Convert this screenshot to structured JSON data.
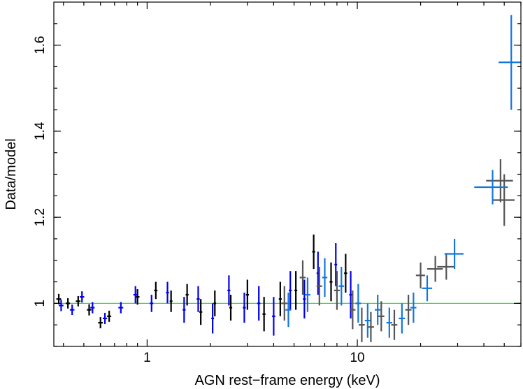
{
  "chart_data": {
    "type": "scatter",
    "title": "",
    "xlabel": "AGN rest−frame energy (keV)",
    "ylabel": "Data/model",
    "xscale": "log",
    "xlim": [
      0.36,
      60
    ],
    "ylim": [
      0.9,
      1.7
    ],
    "x_ticks": [
      {
        "value": 1,
        "label": "1"
      },
      {
        "value": 10,
        "label": "10"
      }
    ],
    "y_ticks": [
      {
        "value": 1,
        "label": "1"
      },
      {
        "value": 1.2,
        "label": "1.2"
      },
      {
        "value": 1.4,
        "label": "1.4"
      },
      {
        "value": 1.6,
        "label": "1.6"
      }
    ],
    "grid": false,
    "legend": "none",
    "reference_line": {
      "y": 1.0,
      "color": "#33dd33"
    },
    "series": [
      {
        "color": "#000000",
        "points": [
          {
            "x": 0.38,
            "y": 1.01,
            "xerr": 0.01,
            "yerr": 0.012
          },
          {
            "x": 0.42,
            "y": 1.0,
            "xerr": 0.01,
            "yerr": 0.012
          },
          {
            "x": 0.47,
            "y": 1.005,
            "xerr": 0.012,
            "yerr": 0.012
          },
          {
            "x": 0.53,
            "y": 0.985,
            "xerr": 0.013,
            "yerr": 0.013
          },
          {
            "x": 0.6,
            "y": 0.955,
            "xerr": 0.015,
            "yerr": 0.013
          },
          {
            "x": 0.66,
            "y": 0.97,
            "xerr": 0.015,
            "yerr": 0.013
          },
          {
            "x": 0.9,
            "y": 1.015,
            "xerr": 0.02,
            "yerr": 0.018
          },
          {
            "x": 1.1,
            "y": 1.03,
            "xerr": 0.02,
            "yerr": 0.02
          },
          {
            "x": 1.3,
            "y": 1.005,
            "xerr": 0.02,
            "yerr": 0.025
          },
          {
            "x": 1.55,
            "y": 1.02,
            "xerr": 0.025,
            "yerr": 0.025
          },
          {
            "x": 1.8,
            "y": 0.98,
            "xerr": 0.03,
            "yerr": 0.03
          },
          {
            "x": 2.1,
            "y": 1.0,
            "xerr": 0.03,
            "yerr": 0.03
          },
          {
            "x": 2.5,
            "y": 0.99,
            "xerr": 0.04,
            "yerr": 0.03
          },
          {
            "x": 3.0,
            "y": 1.02,
            "xerr": 0.05,
            "yerr": 0.035
          },
          {
            "x": 3.6,
            "y": 0.975,
            "xerr": 0.06,
            "yerr": 0.04
          },
          {
            "x": 4.3,
            "y": 1.01,
            "xerr": 0.07,
            "yerr": 0.04
          },
          {
            "x": 5.1,
            "y": 1.03,
            "xerr": 0.08,
            "yerr": 0.045
          },
          {
            "x": 6.2,
            "y": 1.12,
            "xerr": 0.1,
            "yerr": 0.04
          },
          {
            "x": 7.5,
            "y": 1.05,
            "xerr": 0.12,
            "yerr": 0.045
          },
          {
            "x": 8.8,
            "y": 1.07,
            "xerr": 0.15,
            "yerr": 0.045
          }
        ]
      },
      {
        "color": "#0000ee",
        "points": [
          {
            "x": 0.39,
            "y": 0.995,
            "xerr": 0.01,
            "yerr": 0.013
          },
          {
            "x": 0.44,
            "y": 0.985,
            "xerr": 0.011,
            "yerr": 0.012
          },
          {
            "x": 0.49,
            "y": 1.015,
            "xerr": 0.012,
            "yerr": 0.013
          },
          {
            "x": 0.55,
            "y": 0.99,
            "xerr": 0.013,
            "yerr": 0.013
          },
          {
            "x": 0.63,
            "y": 0.965,
            "xerr": 0.015,
            "yerr": 0.013
          },
          {
            "x": 0.75,
            "y": 0.99,
            "xerr": 0.02,
            "yerr": 0.013
          },
          {
            "x": 0.88,
            "y": 1.02,
            "xerr": 0.02,
            "yerr": 0.02
          },
          {
            "x": 1.05,
            "y": 1.0,
            "xerr": 0.02,
            "yerr": 0.02
          },
          {
            "x": 1.25,
            "y": 1.025,
            "xerr": 0.02,
            "yerr": 0.025
          },
          {
            "x": 1.5,
            "y": 0.985,
            "xerr": 0.025,
            "yerr": 0.03
          },
          {
            "x": 1.75,
            "y": 1.01,
            "xerr": 0.03,
            "yerr": 0.03
          },
          {
            "x": 2.05,
            "y": 0.965,
            "xerr": 0.03,
            "yerr": 0.035
          },
          {
            "x": 2.45,
            "y": 1.03,
            "xerr": 0.04,
            "yerr": 0.035
          },
          {
            "x": 2.9,
            "y": 0.99,
            "xerr": 0.05,
            "yerr": 0.035
          },
          {
            "x": 3.4,
            "y": 1.0,
            "xerr": 0.06,
            "yerr": 0.04
          },
          {
            "x": 4.0,
            "y": 0.97,
            "xerr": 0.07,
            "yerr": 0.045
          },
          {
            "x": 4.8,
            "y": 1.03,
            "xerr": 0.08,
            "yerr": 0.045
          },
          {
            "x": 5.6,
            "y": 1.01,
            "xerr": 0.09,
            "yerr": 0.045
          },
          {
            "x": 6.5,
            "y": 1.07,
            "xerr": 0.1,
            "yerr": 0.05
          },
          {
            "x": 7.9,
            "y": 1.09,
            "xerr": 0.12,
            "yerr": 0.05
          },
          {
            "x": 9.3,
            "y": 1.02,
            "xerr": 0.15,
            "yerr": 0.055
          }
        ]
      },
      {
        "color": "#555555",
        "points": [
          {
            "x": 4.5,
            "y": 1.0,
            "xerr": 0.15,
            "yerr": 0.04
          },
          {
            "x": 5.5,
            "y": 1.06,
            "xerr": 0.18,
            "yerr": 0.04
          },
          {
            "x": 6.6,
            "y": 1.04,
            "xerr": 0.2,
            "yerr": 0.045
          },
          {
            "x": 8.0,
            "y": 1.03,
            "xerr": 0.25,
            "yerr": 0.045
          },
          {
            "x": 9.5,
            "y": 0.985,
            "xerr": 0.3,
            "yerr": 0.045
          },
          {
            "x": 10.5,
            "y": 0.95,
            "xerr": 0.35,
            "yerr": 0.04
          },
          {
            "x": 11.6,
            "y": 0.945,
            "xerr": 0.4,
            "yerr": 0.035
          },
          {
            "x": 13.0,
            "y": 0.97,
            "xerr": 0.45,
            "yerr": 0.035
          },
          {
            "x": 15.0,
            "y": 0.95,
            "xerr": 0.5,
            "yerr": 0.035
          },
          {
            "x": 17.5,
            "y": 0.985,
            "xerr": 0.6,
            "yerr": 0.035
          },
          {
            "x": 20.0,
            "y": 1.065,
            "xerr": 1.0,
            "yerr": 0.03
          },
          {
            "x": 23.5,
            "y": 1.08,
            "xerr": 2.0,
            "yerr": 0.03
          },
          {
            "x": 26.5,
            "y": 1.085,
            "xerr": 2.5,
            "yerr": 0.03
          },
          {
            "x": 48.0,
            "y": 1.285,
            "xerr": 7.0,
            "yerr": 0.05
          },
          {
            "x": 50.0,
            "y": 1.24,
            "xerr": 6.0,
            "yerr": 0.06
          }
        ]
      },
      {
        "color": "#1177dd",
        "points": [
          {
            "x": 4.7,
            "y": 0.985,
            "xerr": 0.15,
            "yerr": 0.04
          },
          {
            "x": 5.8,
            "y": 1.02,
            "xerr": 0.18,
            "yerr": 0.04
          },
          {
            "x": 7.0,
            "y": 1.06,
            "xerr": 0.2,
            "yerr": 0.045
          },
          {
            "x": 8.4,
            "y": 1.04,
            "xerr": 0.25,
            "yerr": 0.045
          },
          {
            "x": 10.1,
            "y": 1.0,
            "xerr": 0.3,
            "yerr": 0.045
          },
          {
            "x": 11.2,
            "y": 0.96,
            "xerr": 0.35,
            "yerr": 0.04
          },
          {
            "x": 12.5,
            "y": 0.985,
            "xerr": 0.4,
            "yerr": 0.035
          },
          {
            "x": 14.2,
            "y": 0.955,
            "xerr": 0.45,
            "yerr": 0.035
          },
          {
            "x": 16.3,
            "y": 0.965,
            "xerr": 0.55,
            "yerr": 0.035
          },
          {
            "x": 18.5,
            "y": 0.99,
            "xerr": 0.6,
            "yerr": 0.035
          },
          {
            "x": 21.5,
            "y": 1.035,
            "xerr": 1.2,
            "yerr": 0.03
          },
          {
            "x": 29.0,
            "y": 1.115,
            "xerr": 3.0,
            "yerr": 0.035
          },
          {
            "x": 44.0,
            "y": 1.27,
            "xerr": 8.0,
            "yerr": 0.04
          },
          {
            "x": 54.0,
            "y": 1.56,
            "xerr": 7.0,
            "yerr": 0.11
          }
        ]
      }
    ]
  }
}
